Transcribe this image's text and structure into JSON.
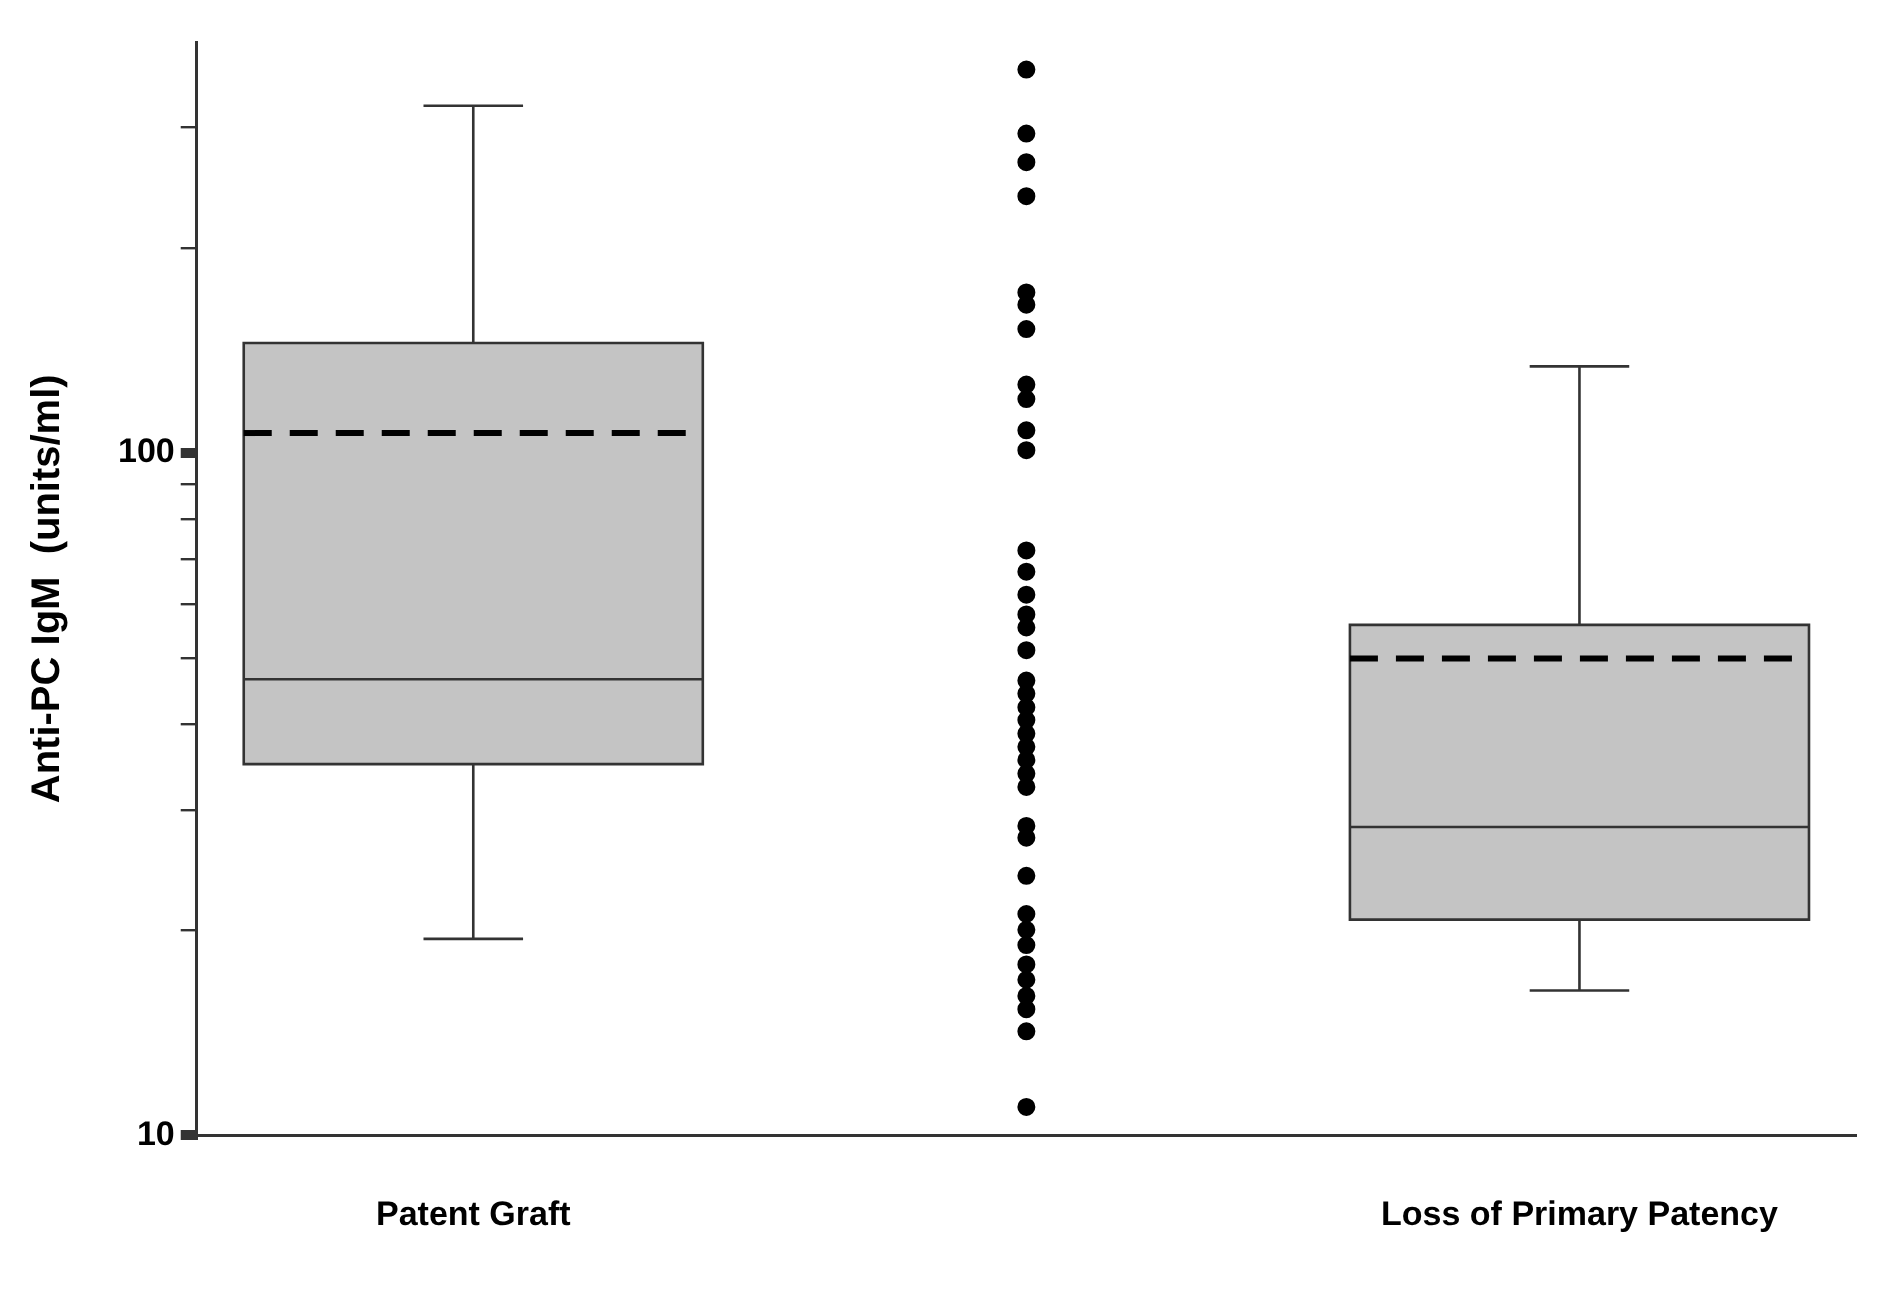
{
  "chart_data": {
    "type": "box",
    "ylabel": "Anti-PC IgM  (units/ml)",
    "categories": [
      "Patent Graft",
      null,
      "Loss of Primary Patency"
    ],
    "log": true,
    "ylim": [
      10,
      400
    ],
    "yticks": [
      10,
      {
        "value": 20,
        "label": null
      },
      {
        "value": 30,
        "label": null
      },
      {
        "value": 40,
        "label": null
      },
      {
        "value": 50,
        "label": null
      },
      {
        "value": 60,
        "label": null
      },
      {
        "value": 70,
        "label": null
      },
      {
        "value": 80,
        "label": null
      },
      {
        "value": 90,
        "label": null
      },
      100,
      {
        "value": 200,
        "label": null
      },
      {
        "value": 300,
        "label": null
      }
    ],
    "grid": false,
    "legend": false,
    "series": [
      {
        "type": "box",
        "color": "#c4c4c4",
        "boxes": [
          {
            "low": 19.4,
            "q1": 35,
            "median": 46.6,
            "q3": 145,
            "high": 323,
            "mean": 107
          },
          null,
          {
            "low": 16.3,
            "q1": 20.7,
            "median": 28.3,
            "q3": 56,
            "high": 134,
            "mean": 50
          }
        ]
      },
      {
        "type": "scatter",
        "color": "#000000",
        "marker": "circle",
        "x": [
          null,
          null,
          null,
          null,
          null,
          null,
          null,
          null,
          null,
          null,
          null,
          null,
          null,
          null,
          null,
          null,
          null,
          null,
          null,
          null,
          null,
          null,
          null,
          null,
          null,
          null,
          null,
          null,
          null,
          null,
          null,
          null,
          null,
          null,
          null,
          null,
          null,
          null
        ],
        "values": [
          365,
          294,
          267,
          238,
          172,
          165,
          152,
          126,
          120,
          108,
          101,
          72,
          67,
          62,
          58,
          55.5,
          51.4,
          46.4,
          44.4,
          42.4,
          40.6,
          38.8,
          37.1,
          35.5,
          33.9,
          32.4,
          28.4,
          27.3,
          24,
          21.1,
          20,
          19,
          17.8,
          16.9,
          16,
          15.3,
          14.2,
          11
        ]
      }
    ]
  }
}
